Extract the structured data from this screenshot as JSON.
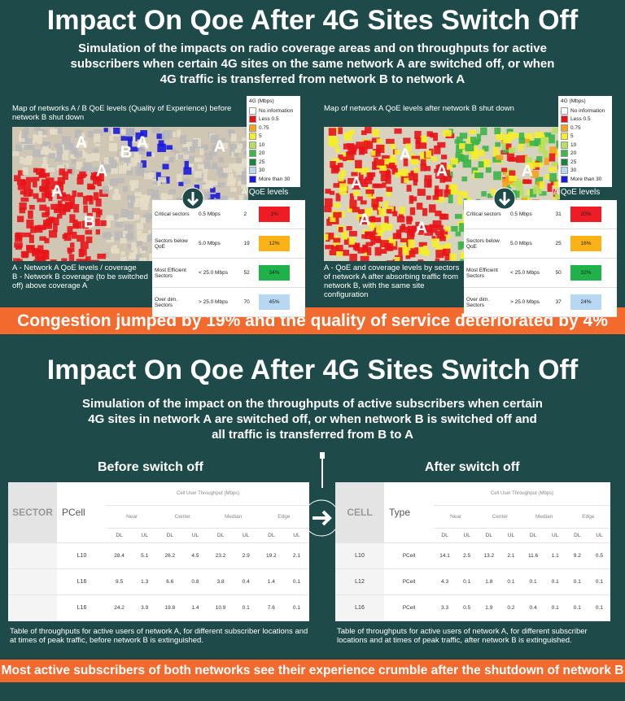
{
  "section1": {
    "title": "Impact On Qoe After 4G Sites Switch Off",
    "subtitle": "Simulation of the impacts on radio coverage areas and on throughputs for active subscribers when certain 4G sites on the same network A are switched off, or when 4G traffic is transferred from network B to network A",
    "left": {
      "caption_top": "Map of networks A / B QoE levels (Quality of Experience) before network B shut down",
      "map_labels": [
        "A",
        "A",
        "B",
        "A",
        "A",
        "B",
        "A"
      ],
      "legend": {
        "title": "4G (Mbps)",
        "items": [
          {
            "name": "No information",
            "color": "#ffffff"
          },
          {
            "name": "Less 0.5",
            "color": "#e8141a"
          },
          {
            "name": "0.75",
            "color": "#f7a21b"
          },
          {
            "name": "5",
            "color": "#f5ee2a"
          },
          {
            "name": "10",
            "color": "#b6e05a"
          },
          {
            "name": "20",
            "color": "#3cb54a"
          },
          {
            "name": "25",
            "color": "#17853a"
          },
          {
            "name": "30",
            "color": "#b8d9f0"
          },
          {
            "name": "More than 30",
            "color": "#1a1adb"
          }
        ]
      },
      "levels_label": "A QoE levels",
      "table": {
        "colors": [
          "#ee1c24",
          "#fbb216",
          "#1fb14a",
          "#b7d7f2"
        ],
        "rows": [
          [
            "Critical sectors",
            "0.5 Mbps",
            2,
            "1%"
          ],
          [
            "Sectors below QoE",
            "5.0 Mbps",
            19,
            "12%"
          ],
          [
            "Most Efficient Sectors",
            "< 25.0 Mbps",
            52,
            "34%"
          ],
          [
            "Over dim. Sectors",
            "> 25.0 Mbps",
            70,
            "45%"
          ]
        ]
      },
      "caption_bottom": [
        "A - Network A QoE levels / coverage",
        "B - Network B coverage (to be switched off) above coverage A"
      ]
    },
    "right": {
      "caption_top": "Map of network A QoE levels after network B shut down",
      "map_labels": [
        "A",
        "A",
        "A",
        "A",
        "A",
        "A"
      ],
      "legend": {
        "title": "4G (Mbps)",
        "items": [
          {
            "name": "No information",
            "color": "#ffffff"
          },
          {
            "name": "Less 0.5",
            "color": "#e8141a"
          },
          {
            "name": "0.75",
            "color": "#f7a21b"
          },
          {
            "name": "5",
            "color": "#f5ee2a"
          },
          {
            "name": "10",
            "color": "#b6e05a"
          },
          {
            "name": "20",
            "color": "#3cb54a"
          },
          {
            "name": "25",
            "color": "#17853a"
          },
          {
            "name": "30",
            "color": "#b8d9f0"
          },
          {
            "name": "More than 30",
            "color": "#1a1adb"
          }
        ]
      },
      "levels_label": "A QoE levels",
      "table": {
        "colors": [
          "#ee1c24",
          "#fbb216",
          "#1fb14a",
          "#b7d7f2"
        ],
        "rows": [
          [
            "Critical sectors",
            "0.5 Mbps",
            31,
            "20%"
          ],
          [
            "Sectors below QoE",
            "5.0 Mbps",
            25,
            "16%"
          ],
          [
            "Most Efficient Sectors",
            "< 25.0 Mbps",
            50,
            "32%"
          ],
          [
            "Over dim. Sectors",
            "> 25.0 Mbps",
            37,
            "24%"
          ]
        ]
      },
      "caption_bottom": [
        "A - QoE and coverage levels by sectors of network A after absorbing traffic from network B, with the same site configuration"
      ]
    },
    "banner": "Congestion jumped by 19% and the quality of service deteriorated by 4%"
  },
  "section2": {
    "title": "Impact On Qoe After 4G Sites Switch Off",
    "subtitle": "Simulation of the impact on the throughputs of active subscribers when certain 4G sites in network A are switched off, or when network B is switched off and all traffic is transferred from B to A",
    "before": {
      "heading": "Before switch off",
      "headers": [
        "SECTOR",
        "PCell",
        "Cell User Throughput (Mbps)",
        "Near",
        "Center",
        "Median",
        "Edge",
        "DL",
        "UL"
      ],
      "rows": [
        {
          "cell": "L10",
          "values": [
            28.4,
            5.1,
            26.2,
            4.5,
            23.2,
            2.9,
            19.2,
            2.1
          ]
        },
        {
          "cell": "L16",
          "values": [
            9.5,
            1.3,
            6.6,
            0.8,
            3.8,
            0.4,
            1.4,
            0.1
          ]
        },
        {
          "cell": "L16",
          "values": [
            24.2,
            3.9,
            19.8,
            1.4,
            10.9,
            0.1,
            7.6,
            0.1
          ]
        }
      ],
      "caption": "Table of throughputs for active users of network A, for different subscriber locations and at times of peak traffic, before network B is extinguished."
    },
    "after": {
      "heading": "After switch off",
      "headers": [
        "CELL",
        "Type",
        "Cell User Throughput (Mbps)",
        "Near",
        "Center",
        "Median",
        "Edge",
        "DL",
        "UL"
      ],
      "rows": [
        {
          "cell": "L10",
          "type": "PCell",
          "values": [
            14.1,
            2.5,
            13.2,
            2.1,
            11.6,
            1.1,
            9.2,
            0.5
          ]
        },
        {
          "cell": "L12",
          "type": "PCell",
          "values": [
            4.3,
            0.1,
            1.8,
            0.1,
            0.1,
            0.1,
            0.1,
            0.1
          ]
        },
        {
          "cell": "L16",
          "type": "PCell",
          "values": [
            3.3,
            0.5,
            1.9,
            0.2,
            0.4,
            0.1,
            0.1,
            0.1
          ]
        }
      ],
      "caption": "Table of throughputs for active users of network A, for different subscriber locations and at times of peak traffic, after network B is extinguished."
    },
    "banner": "Most active subscribers of both networks see their experience crumble after the shutdown of network B"
  }
}
